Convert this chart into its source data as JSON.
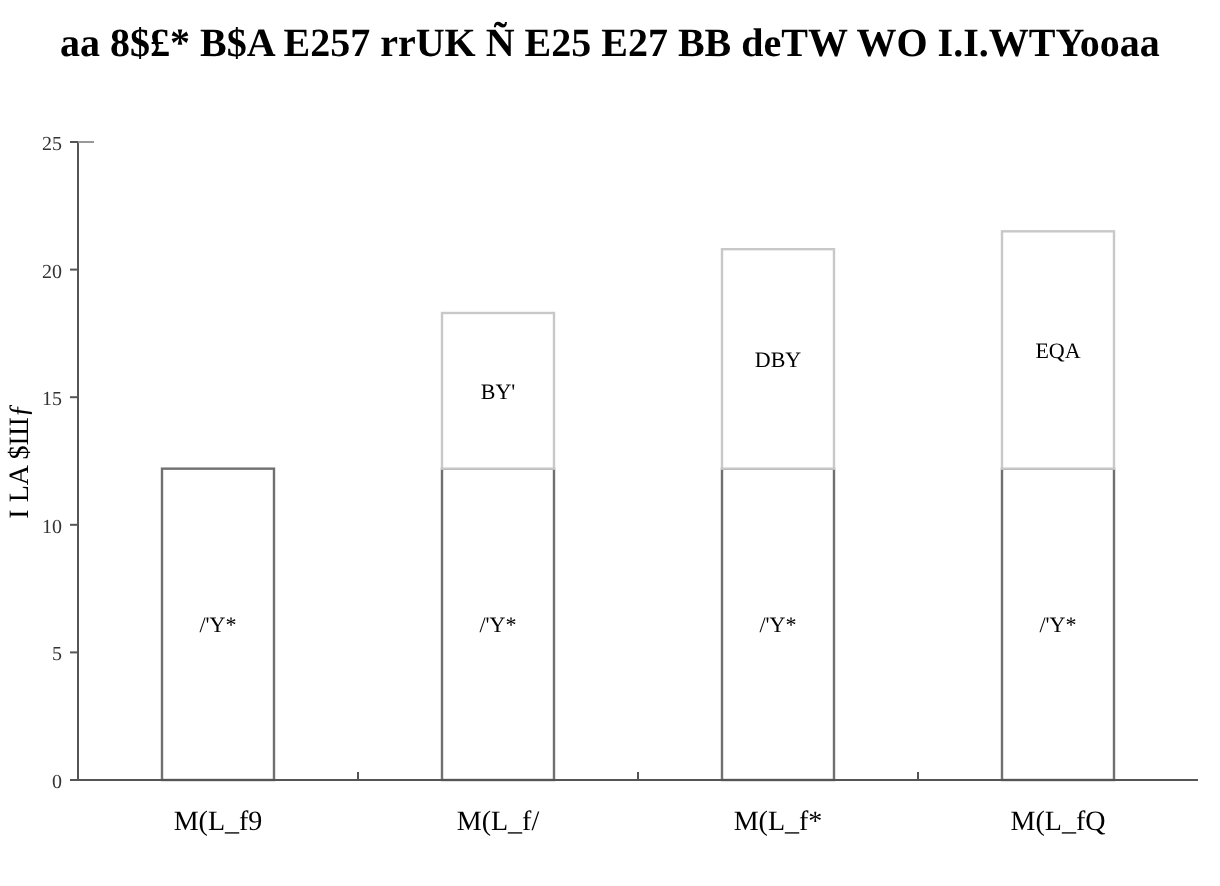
{
  "chart_data": {
    "type": "bar",
    "title": "aa 8$£* B$A E257 rrUK Ñ E25 E27 BB deTW WO I.I.WTYooaa",
    "ylabel": "I LA $Шƒ",
    "categories": [
      "M(L_f9",
      "M(L_f/",
      "M(L_f*",
      "M(L_fQ"
    ],
    "stacked": true,
    "ylim": [
      0,
      25
    ],
    "yticks": [
      0,
      5,
      10,
      15,
      20,
      25
    ],
    "grid": false,
    "series": [
      {
        "color": "#707070",
        "values": [
          12.2,
          12.2,
          12.2,
          12.2
        ],
        "value_labels": [
          "/'Y*",
          "/'Y*",
          "/'Y*",
          "/'Y*"
        ]
      },
      {
        "color": "#c8c8c8",
        "values": [
          null,
          6.1,
          8.6,
          9.3
        ],
        "value_labels": [
          null,
          "BY'",
          "DBY",
          "EQA"
        ]
      }
    ]
  }
}
